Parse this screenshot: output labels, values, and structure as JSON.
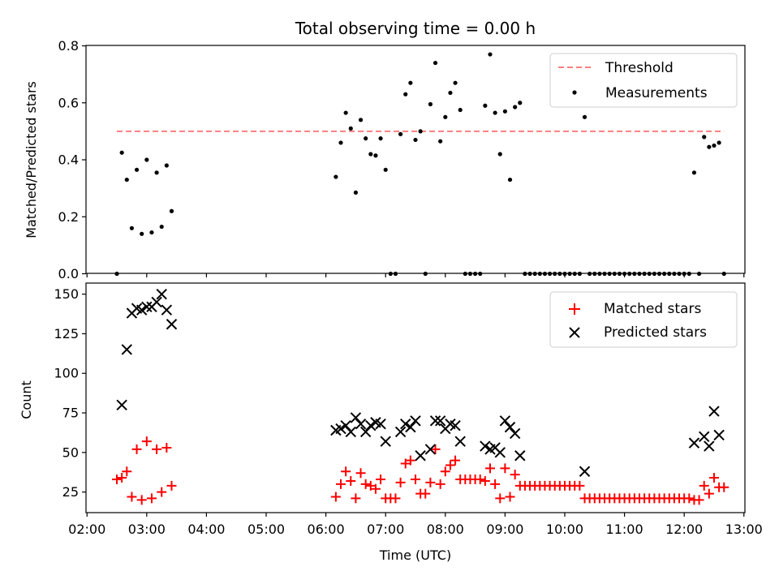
{
  "chart_data": [
    {
      "type": "scatter",
      "title": "Total observing time = 0.00 h",
      "ylabel": "Matched/Predicted stars",
      "xlabel": "",
      "xlim": [
        "02:00",
        "13:00"
      ],
      "ylim": [
        0,
        0.8
      ],
      "yticks": [
        "0.0",
        "0.2",
        "0.4",
        "0.6",
        "0.8"
      ],
      "legend_position": "top-right",
      "grid": false,
      "threshold": {
        "name": "Threshold",
        "value": 0.5,
        "x_range": [
          "02:30",
          "12:40"
        ],
        "color": "#ff7f7f"
      },
      "series": [
        {
          "name": "Measurements",
          "marker": "dot",
          "color": "#000000",
          "points": [
            [
              "02:30",
              0.0
            ],
            [
              "02:35",
              0.425
            ],
            [
              "02:40",
              0.33
            ],
            [
              "02:45",
              0.16
            ],
            [
              "02:50",
              0.365
            ],
            [
              "02:55",
              0.14
            ],
            [
              "03:00",
              0.4
            ],
            [
              "03:05",
              0.145
            ],
            [
              "03:10",
              0.355
            ],
            [
              "03:15",
              0.165
            ],
            [
              "03:20",
              0.38
            ],
            [
              "03:25",
              0.22
            ],
            [
              "06:10",
              0.34
            ],
            [
              "06:15",
              0.46
            ],
            [
              "06:20",
              0.565
            ],
            [
              "06:25",
              0.51
            ],
            [
              "06:30",
              0.285
            ],
            [
              "06:35",
              0.54
            ],
            [
              "06:40",
              0.475
            ],
            [
              "06:45",
              0.42
            ],
            [
              "06:50",
              0.415
            ],
            [
              "06:55",
              0.475
            ],
            [
              "07:00",
              0.365
            ],
            [
              "07:05",
              0.0
            ],
            [
              "07:10",
              0.0
            ],
            [
              "07:15",
              0.49
            ],
            [
              "07:20",
              0.63
            ],
            [
              "07:25",
              0.67
            ],
            [
              "07:30",
              0.47
            ],
            [
              "07:35",
              0.5
            ],
            [
              "07:40",
              0.0
            ],
            [
              "07:45",
              0.595
            ],
            [
              "07:50",
              0.74
            ],
            [
              "07:55",
              0.465
            ],
            [
              "08:00",
              0.55
            ],
            [
              "08:05",
              0.635
            ],
            [
              "08:10",
              0.67
            ],
            [
              "08:15",
              0.575
            ],
            [
              "08:20",
              0.0
            ],
            [
              "08:25",
              0.0
            ],
            [
              "08:30",
              0.0
            ],
            [
              "08:35",
              0.0
            ],
            [
              "08:40",
              0.59
            ],
            [
              "08:45",
              0.77
            ],
            [
              "08:50",
              0.565
            ],
            [
              "08:55",
              0.42
            ],
            [
              "09:00",
              0.57
            ],
            [
              "09:05",
              0.33
            ],
            [
              "09:10",
              0.585
            ],
            [
              "09:15",
              0.6
            ],
            [
              "09:20",
              0.0
            ],
            [
              "09:25",
              0.0
            ],
            [
              "09:30",
              0.0
            ],
            [
              "09:35",
              0.0
            ],
            [
              "09:40",
              0.0
            ],
            [
              "09:45",
              0.0
            ],
            [
              "09:50",
              0.0
            ],
            [
              "09:55",
              0.0
            ],
            [
              "10:00",
              0.0
            ],
            [
              "10:05",
              0.0
            ],
            [
              "10:10",
              0.0
            ],
            [
              "10:15",
              0.0
            ],
            [
              "10:20",
              0.55
            ],
            [
              "10:25",
              0.0
            ],
            [
              "10:30",
              0.0
            ],
            [
              "10:35",
              0.0
            ],
            [
              "10:40",
              0.0
            ],
            [
              "10:45",
              0.0
            ],
            [
              "10:50",
              0.0
            ],
            [
              "10:55",
              0.0
            ],
            [
              "11:00",
              0.0
            ],
            [
              "11:05",
              0.0
            ],
            [
              "11:10",
              0.0
            ],
            [
              "11:15",
              0.0
            ],
            [
              "11:20",
              0.0
            ],
            [
              "11:25",
              0.0
            ],
            [
              "11:30",
              0.0
            ],
            [
              "11:35",
              0.0
            ],
            [
              "11:40",
              0.0
            ],
            [
              "11:45",
              0.0
            ],
            [
              "11:50",
              0.0
            ],
            [
              "11:55",
              0.0
            ],
            [
              "12:00",
              0.0
            ],
            [
              "12:05",
              0.0
            ],
            [
              "12:10",
              0.355
            ],
            [
              "12:15",
              0.0
            ],
            [
              "12:20",
              0.48
            ],
            [
              "12:25",
              0.445
            ],
            [
              "12:30",
              0.45
            ],
            [
              "12:35",
              0.46
            ],
            [
              "12:40",
              0.0
            ]
          ]
        }
      ]
    },
    {
      "type": "scatter",
      "title": "",
      "xlabel": "Time (UTC)",
      "ylabel": "Count",
      "xlim": [
        "02:00",
        "13:00"
      ],
      "xticks": [
        "02:00",
        "03:00",
        "04:00",
        "05:00",
        "06:00",
        "07:00",
        "08:00",
        "09:00",
        "10:00",
        "11:00",
        "12:00",
        "13:00"
      ],
      "ylim": [
        12,
        157
      ],
      "yticks": [
        "25",
        "50",
        "75",
        "100",
        "125",
        "150"
      ],
      "legend_position": "top-right",
      "grid": false,
      "series": [
        {
          "name": "Matched stars",
          "marker": "plus",
          "color": "#ff0000",
          "points": [
            [
              "02:30",
              33
            ],
            [
              "02:35",
              34
            ],
            [
              "02:40",
              38
            ],
            [
              "02:45",
              22
            ],
            [
              "02:50",
              52
            ],
            [
              "02:55",
              20
            ],
            [
              "03:00",
              57
            ],
            [
              "03:05",
              21
            ],
            [
              "03:10",
              52
            ],
            [
              "03:15",
              25
            ],
            [
              "03:20",
              53
            ],
            [
              "03:25",
              29
            ],
            [
              "06:10",
              22
            ],
            [
              "06:15",
              30
            ],
            [
              "06:20",
              38
            ],
            [
              "06:25",
              32
            ],
            [
              "06:30",
              21
            ],
            [
              "06:35",
              37
            ],
            [
              "06:40",
              30
            ],
            [
              "06:45",
              29
            ],
            [
              "06:50",
              27
            ],
            [
              "06:55",
              33
            ],
            [
              "07:00",
              21
            ],
            [
              "07:05",
              21
            ],
            [
              "07:10",
              21
            ],
            [
              "07:15",
              31
            ],
            [
              "07:20",
              43
            ],
            [
              "07:25",
              45
            ],
            [
              "07:30",
              33
            ],
            [
              "07:35",
              24
            ],
            [
              "07:40",
              24
            ],
            [
              "07:45",
              31
            ],
            [
              "07:50",
              52
            ],
            [
              "07:55",
              30
            ],
            [
              "08:00",
              38
            ],
            [
              "08:05",
              42
            ],
            [
              "08:10",
              45
            ],
            [
              "08:15",
              33
            ],
            [
              "08:20",
              33
            ],
            [
              "08:25",
              33
            ],
            [
              "08:30",
              33
            ],
            [
              "08:35",
              33
            ],
            [
              "08:40",
              32
            ],
            [
              "08:45",
              40
            ],
            [
              "08:50",
              30
            ],
            [
              "08:55",
              21
            ],
            [
              "09:00",
              40
            ],
            [
              "09:05",
              22
            ],
            [
              "09:10",
              36
            ],
            [
              "09:15",
              29
            ],
            [
              "09:20",
              29
            ],
            [
              "09:25",
              29
            ],
            [
              "09:30",
              29
            ],
            [
              "09:35",
              29
            ],
            [
              "09:40",
              29
            ],
            [
              "09:45",
              29
            ],
            [
              "09:50",
              29
            ],
            [
              "09:55",
              29
            ],
            [
              "10:00",
              29
            ],
            [
              "10:05",
              29
            ],
            [
              "10:10",
              29
            ],
            [
              "10:15",
              29
            ],
            [
              "10:20",
              21
            ],
            [
              "10:25",
              21
            ],
            [
              "10:30",
              21
            ],
            [
              "10:35",
              21
            ],
            [
              "10:40",
              21
            ],
            [
              "10:45",
              21
            ],
            [
              "10:50",
              21
            ],
            [
              "10:55",
              21
            ],
            [
              "11:00",
              21
            ],
            [
              "11:05",
              21
            ],
            [
              "11:10",
              21
            ],
            [
              "11:15",
              21
            ],
            [
              "11:20",
              21
            ],
            [
              "11:25",
              21
            ],
            [
              "11:30",
              21
            ],
            [
              "11:35",
              21
            ],
            [
              "11:40",
              21
            ],
            [
              "11:45",
              21
            ],
            [
              "11:50",
              21
            ],
            [
              "11:55",
              21
            ],
            [
              "12:00",
              21
            ],
            [
              "12:05",
              21
            ],
            [
              "12:10",
              20
            ],
            [
              "12:15",
              20
            ],
            [
              "12:20",
              29
            ],
            [
              "12:25",
              24
            ],
            [
              "12:30",
              34
            ],
            [
              "12:35",
              28
            ],
            [
              "12:40",
              28
            ]
          ]
        },
        {
          "name": "Predicted stars",
          "marker": "x",
          "color": "#000000",
          "points": [
            [
              "02:35",
              80
            ],
            [
              "02:40",
              115
            ],
            [
              "02:45",
              138
            ],
            [
              "02:50",
              141
            ],
            [
              "02:55",
              140
            ],
            [
              "03:00",
              142
            ],
            [
              "03:05",
              142
            ],
            [
              "03:10",
              145
            ],
            [
              "03:15",
              150
            ],
            [
              "03:20",
              140
            ],
            [
              "03:25",
              131
            ],
            [
              "06:10",
              64
            ],
            [
              "06:15",
              65
            ],
            [
              "06:20",
              67
            ],
            [
              "06:25",
              63
            ],
            [
              "06:30",
              72
            ],
            [
              "06:35",
              68
            ],
            [
              "06:40",
              63
            ],
            [
              "06:45",
              67
            ],
            [
              "06:50",
              69
            ],
            [
              "06:55",
              68
            ],
            [
              "07:00",
              57
            ],
            [
              "07:15",
              63
            ],
            [
              "07:20",
              68
            ],
            [
              "07:25",
              66
            ],
            [
              "07:30",
              70
            ],
            [
              "07:35",
              48
            ],
            [
              "07:45",
              52
            ],
            [
              "07:50",
              70
            ],
            [
              "07:55",
              70
            ],
            [
              "08:00",
              65
            ],
            [
              "08:05",
              68
            ],
            [
              "08:10",
              67
            ],
            [
              "08:15",
              57
            ],
            [
              "08:40",
              54
            ],
            [
              "08:45",
              52
            ],
            [
              "08:50",
              53
            ],
            [
              "08:55",
              50
            ],
            [
              "09:00",
              70
            ],
            [
              "09:05",
              66
            ],
            [
              "09:10",
              62
            ],
            [
              "09:15",
              48
            ],
            [
              "10:20",
              38
            ],
            [
              "12:10",
              56
            ],
            [
              "12:20",
              60
            ],
            [
              "12:25",
              54
            ],
            [
              "12:30",
              76
            ],
            [
              "12:35",
              61
            ]
          ]
        }
      ]
    }
  ]
}
